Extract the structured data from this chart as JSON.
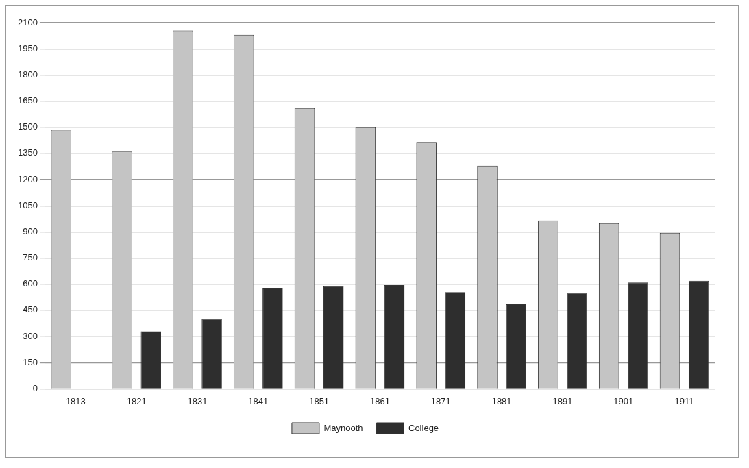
{
  "chart_data": {
    "type": "bar",
    "categories": [
      "1813",
      "1821",
      "1831",
      "1841",
      "1851",
      "1861",
      "1871",
      "1881",
      "1891",
      "1901",
      "1911"
    ],
    "series": [
      {
        "name": "Maynooth",
        "color": "#c4c4c4",
        "values": [
          1485,
          1360,
          2055,
          2030,
          1610,
          1500,
          1415,
          1280,
          965,
          950,
          895
        ]
      },
      {
        "name": "College",
        "color": "#2e2e2e",
        "values": [
          null,
          330,
          400,
          575,
          590,
          595,
          555,
          485,
          550,
          610,
          620
        ]
      }
    ],
    "ylim": [
      0,
      2100
    ],
    "yticks": [
      0,
      150,
      300,
      450,
      600,
      750,
      900,
      1050,
      1200,
      1350,
      1500,
      1650,
      1800,
      1950,
      2100
    ],
    "grid": "y",
    "legend": "bottom"
  }
}
